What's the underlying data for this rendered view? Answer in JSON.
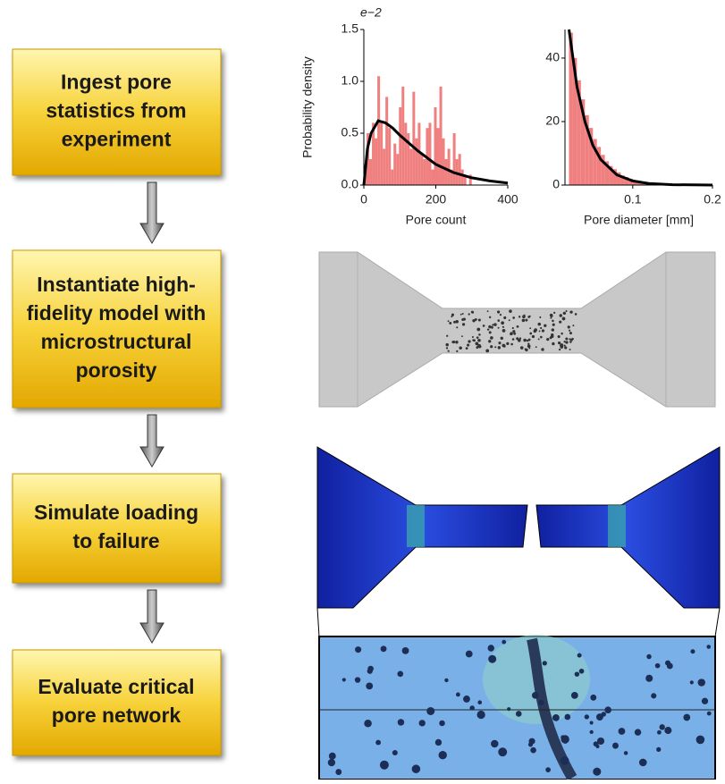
{
  "steps": [
    {
      "lines": [
        "Ingest pore",
        "statistics from",
        "experiment"
      ]
    },
    {
      "lines": [
        "Instantiate high-",
        "fidelity model with",
        "microstructural",
        "porosity"
      ]
    },
    {
      "lines": [
        "Simulate loading",
        "to failure"
      ]
    },
    {
      "lines": [
        "Evaluate critical",
        "pore network"
      ]
    }
  ],
  "chart_data": [
    {
      "type": "histogram",
      "ylabel": "Probability density",
      "xlabel": "Pore count",
      "y_multiplier": "e−2",
      "bins": [
        0,
        7.5,
        15,
        22.5,
        30,
        37.5,
        45,
        52.5,
        60,
        67.5,
        75,
        82.5,
        90,
        97.5,
        105,
        112.5,
        120,
        127.5,
        135,
        142.5,
        150,
        157.5,
        165,
        172.5,
        180,
        187.5,
        195,
        202.5,
        210,
        217.5,
        225,
        232.5,
        240,
        247.5,
        255,
        262.5,
        270,
        277.5,
        285,
        292.5,
        300
      ],
      "values": [
        0.2,
        0.5,
        0.25,
        0.6,
        0.45,
        1.05,
        0.6,
        0.35,
        0.85,
        0.55,
        0.15,
        0.4,
        0.3,
        0.75,
        0.95,
        0.6,
        0.5,
        0.35,
        0.9,
        0.45,
        0.6,
        0.3,
        0.25,
        0.55,
        0.6,
        0.15,
        0.75,
        0.55,
        0.95,
        0.45,
        0.25,
        0.35,
        0.15,
        0.5,
        0.25,
        0.3,
        0.15,
        0.1,
        0.0,
        0.1
      ],
      "color": "#f08080",
      "curve": {
        "color": "#000000",
        "x": [
          0,
          10,
          20,
          40,
          60,
          80,
          100,
          150,
          200,
          250,
          300,
          350,
          400
        ],
        "y": [
          0,
          0.35,
          0.5,
          0.62,
          0.6,
          0.55,
          0.48,
          0.33,
          0.2,
          0.12,
          0.07,
          0.04,
          0.02
        ]
      },
      "xlim": [
        0,
        400
      ],
      "xticks": [
        0,
        200,
        400
      ],
      "ylim": [
        0,
        1.5
      ],
      "yticks": [
        {
          "value": 0,
          "label": "0.0"
        },
        {
          "value": 0.5,
          "label": "0.5"
        },
        {
          "value": 1,
          "label": "1.0"
        },
        {
          "value": 1.5,
          "label": "1.5"
        }
      ]
    },
    {
      "type": "histogram",
      "xlabel": "Pore diameter [mm]",
      "bins": [
        0.02,
        0.025,
        0.03,
        0.035,
        0.04,
        0.045,
        0.05,
        0.055,
        0.06,
        0.065,
        0.07,
        0.075,
        0.08,
        0.085,
        0.09,
        0.095,
        0.1,
        0.105,
        0.11,
        0.115,
        0.12
      ],
      "values": [
        48,
        40,
        33,
        27,
        22,
        18,
        14.5,
        12,
        9.5,
        7.5,
        6,
        5,
        4,
        3,
        2.5,
        2,
        1.5,
        1,
        0.8,
        0.5
      ],
      "color": "#f08080",
      "curve": {
        "color": "#000000",
        "x": [
          0.02,
          0.03,
          0.04,
          0.05,
          0.06,
          0.08,
          0.1,
          0.12,
          0.15,
          0.2
        ],
        "y": [
          49,
          31,
          20,
          12.5,
          8,
          3.2,
          1.3,
          0.5,
          0.1,
          0.01
        ]
      },
      "xlim": [
        0.015,
        0.2
      ],
      "xticks": [
        0.1,
        0.2
      ],
      "ylim": [
        0,
        49
      ],
      "yticks": [
        0,
        20,
        40
      ]
    }
  ]
}
